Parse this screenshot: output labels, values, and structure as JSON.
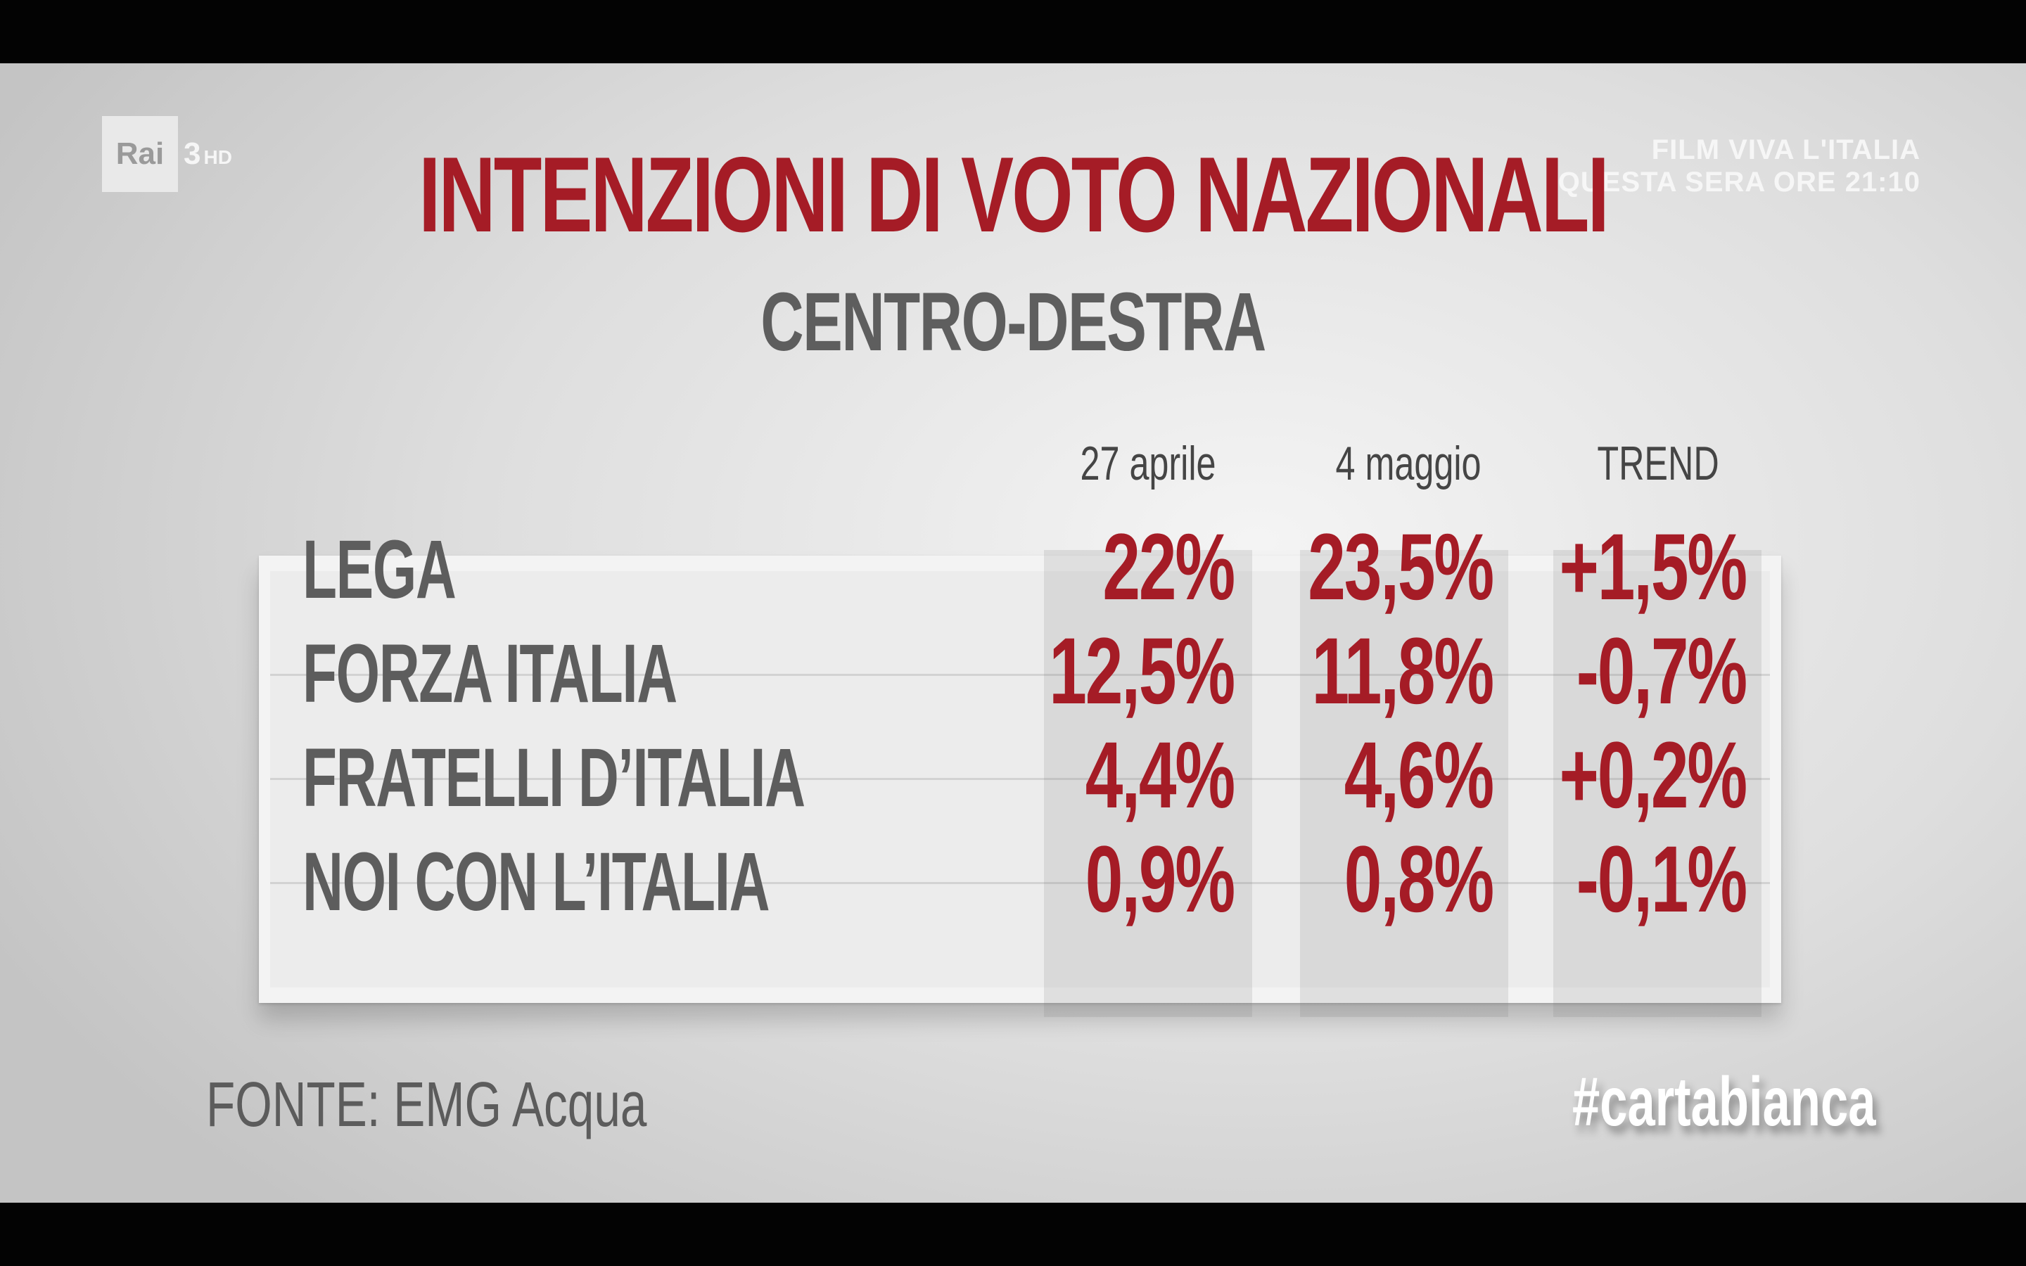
{
  "channel": {
    "logo_text": "Rai",
    "number": "3",
    "hd": "HD"
  },
  "promo": {
    "line1": "FILM VIVA L'ITALIA",
    "line2": "QUESTA SERA ORE 21:10"
  },
  "title": "INTENZIONI DI VOTO NAZIONALI",
  "subtitle": "CENTRO-DESTRA",
  "columns": [
    "27 aprile",
    "4 maggio",
    "TREND"
  ],
  "rows": [
    {
      "party": "LEGA",
      "values": [
        "22%",
        "23,5%",
        "+1,5%"
      ]
    },
    {
      "party": "FORZA ITALIA",
      "values": [
        "12,5%",
        "11,8%",
        "-0,7%"
      ]
    },
    {
      "party": "FRATELLI D’ITALIA",
      "values": [
        "4,4%",
        "4,6%",
        "+0,2%"
      ]
    },
    {
      "party": "NOI CON L’ITALIA",
      "values": [
        "0,9%",
        "0,8%",
        "-0,1%"
      ]
    }
  ],
  "source": "FONTE: EMG Acqua",
  "hashtag": "#cartabianca",
  "colors": {
    "accent_red": "#a51c26",
    "label_gray": "#5d5d5d"
  }
}
